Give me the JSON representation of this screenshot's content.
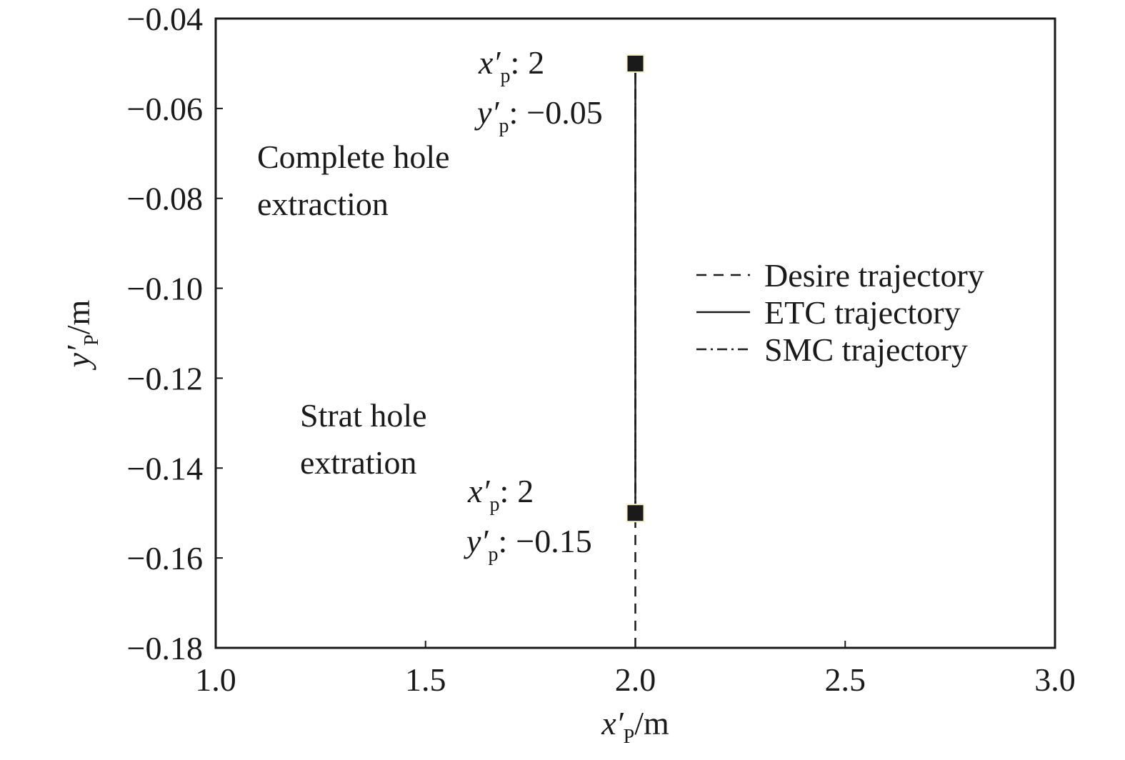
{
  "chart_data": {
    "type": "line",
    "x_label": {
      "symbol": "x′",
      "subscript": "P",
      "unit": "/m"
    },
    "y_label": {
      "symbol": "y′",
      "subscript": "P",
      "unit": "/m"
    },
    "xlim": [
      1,
      3
    ],
    "ylim": [
      -0.18,
      -0.04
    ],
    "xticks": [
      {
        "value": 1,
        "label": "1.0"
      },
      1.5,
      {
        "value": 2,
        "label": "2.0"
      },
      2.5,
      {
        "value": 3,
        "label": "3.0"
      }
    ],
    "yticks": [
      {
        "value": -0.04,
        "label": "−0.04"
      },
      {
        "value": -0.06,
        "label": "−0.06"
      },
      {
        "value": -0.08,
        "label": "−0.08"
      },
      {
        "value": -0.1,
        "label": "−0.10"
      },
      {
        "value": -0.12,
        "label": "−0.12"
      },
      {
        "value": -0.14,
        "label": "−0.14"
      },
      {
        "value": -0.16,
        "label": "−0.16"
      },
      {
        "value": -0.18,
        "label": "−0.18"
      }
    ],
    "grid": false,
    "legend": "right",
    "series": [
      {
        "name": "Desire trajectory",
        "color": "#1a1a1a",
        "dash": "dashed",
        "x": [
          2,
          2
        ],
        "values": [
          -0.18,
          -0.05
        ]
      },
      {
        "name": "ETC trajectory",
        "color": "#1a1a1a",
        "dash": "solid",
        "x": [
          2,
          2
        ],
        "values": [
          -0.15,
          -0.05
        ]
      },
      {
        "name": "SMC trajectory",
        "color": "#1a1a1a",
        "dash": "dashdot",
        "x": [
          2,
          2
        ],
        "values": [
          -0.15,
          -0.05
        ]
      }
    ],
    "points": [
      {
        "x": 2,
        "y": -0.05,
        "y_label": "−0.05"
      },
      {
        "x": 2,
        "y": -0.15,
        "y_label": "−0.15"
      }
    ],
    "point_symbols": {
      "x": "x′",
      "y": "y′",
      "subscript": "p",
      "separator": ":"
    },
    "annotations": [
      [
        "Complete hole",
        "extraction"
      ],
      [
        "Strat hole",
        "extration"
      ]
    ]
  }
}
